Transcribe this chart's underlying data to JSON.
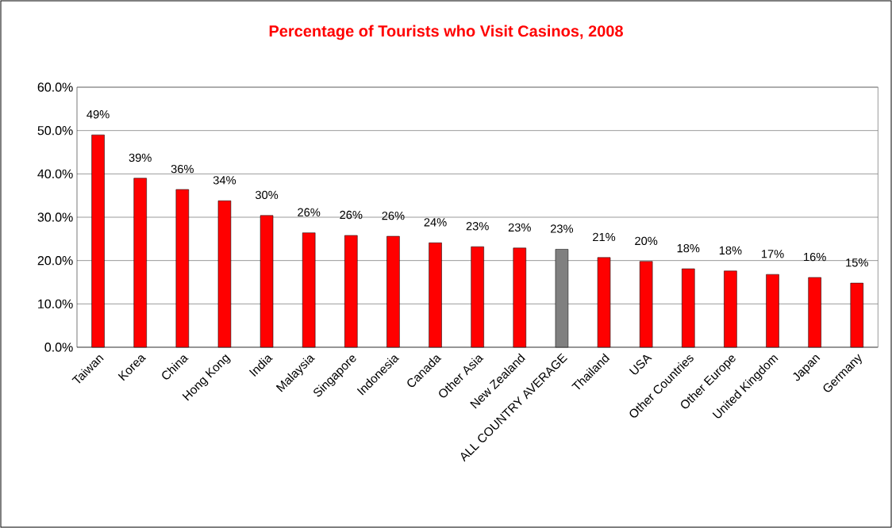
{
  "chart_data": {
    "type": "bar",
    "title": "Percentage of Tourists who Visit Casinos, 2008",
    "categories": [
      "Taiwan",
      "Korea",
      "China",
      "Hong Kong",
      "India",
      "Malaysia",
      "Singapore",
      "Indonesia",
      "Canada",
      "Other Asia",
      "New Zealand",
      "ALL COUNTRY AVERAGE",
      "Thailand",
      "USA",
      "Other Countries",
      "Other Europe",
      "United Kingdom",
      "Japan",
      "Germany"
    ],
    "values": [
      49.0,
      39.0,
      36.4,
      33.8,
      30.4,
      26.4,
      25.8,
      25.6,
      24.1,
      23.2,
      22.9,
      22.6,
      20.7,
      19.8,
      18.1,
      17.6,
      16.8,
      16.1,
      14.8
    ],
    "value_labels": [
      "49%",
      "39%",
      "36%",
      "34%",
      "30%",
      "26%",
      "26%",
      "26%",
      "24%",
      "23%",
      "23%",
      "23%",
      "21%",
      "20%",
      "18%",
      "18%",
      "17%",
      "16%",
      "15%"
    ],
    "colors": [
      "#ff0000",
      "#ff0000",
      "#ff0000",
      "#ff0000",
      "#ff0000",
      "#ff0000",
      "#ff0000",
      "#ff0000",
      "#ff0000",
      "#ff0000",
      "#ff0000",
      "#808080",
      "#ff0000",
      "#ff0000",
      "#ff0000",
      "#ff0000",
      "#ff0000",
      "#ff0000",
      "#ff0000"
    ],
    "ylim": [
      0,
      60
    ],
    "yticks": [
      {
        "value": 0,
        "label": "0.0%"
      },
      {
        "value": 10,
        "label": "10.0%"
      },
      {
        "value": 20,
        "label": "20.0%"
      },
      {
        "value": 30,
        "label": "30.0%"
      },
      {
        "value": 40,
        "label": "40.0%"
      },
      {
        "value": 50,
        "label": "50.0%"
      },
      {
        "value": 60,
        "label": "60.0%"
      }
    ],
    "grid": "y"
  }
}
